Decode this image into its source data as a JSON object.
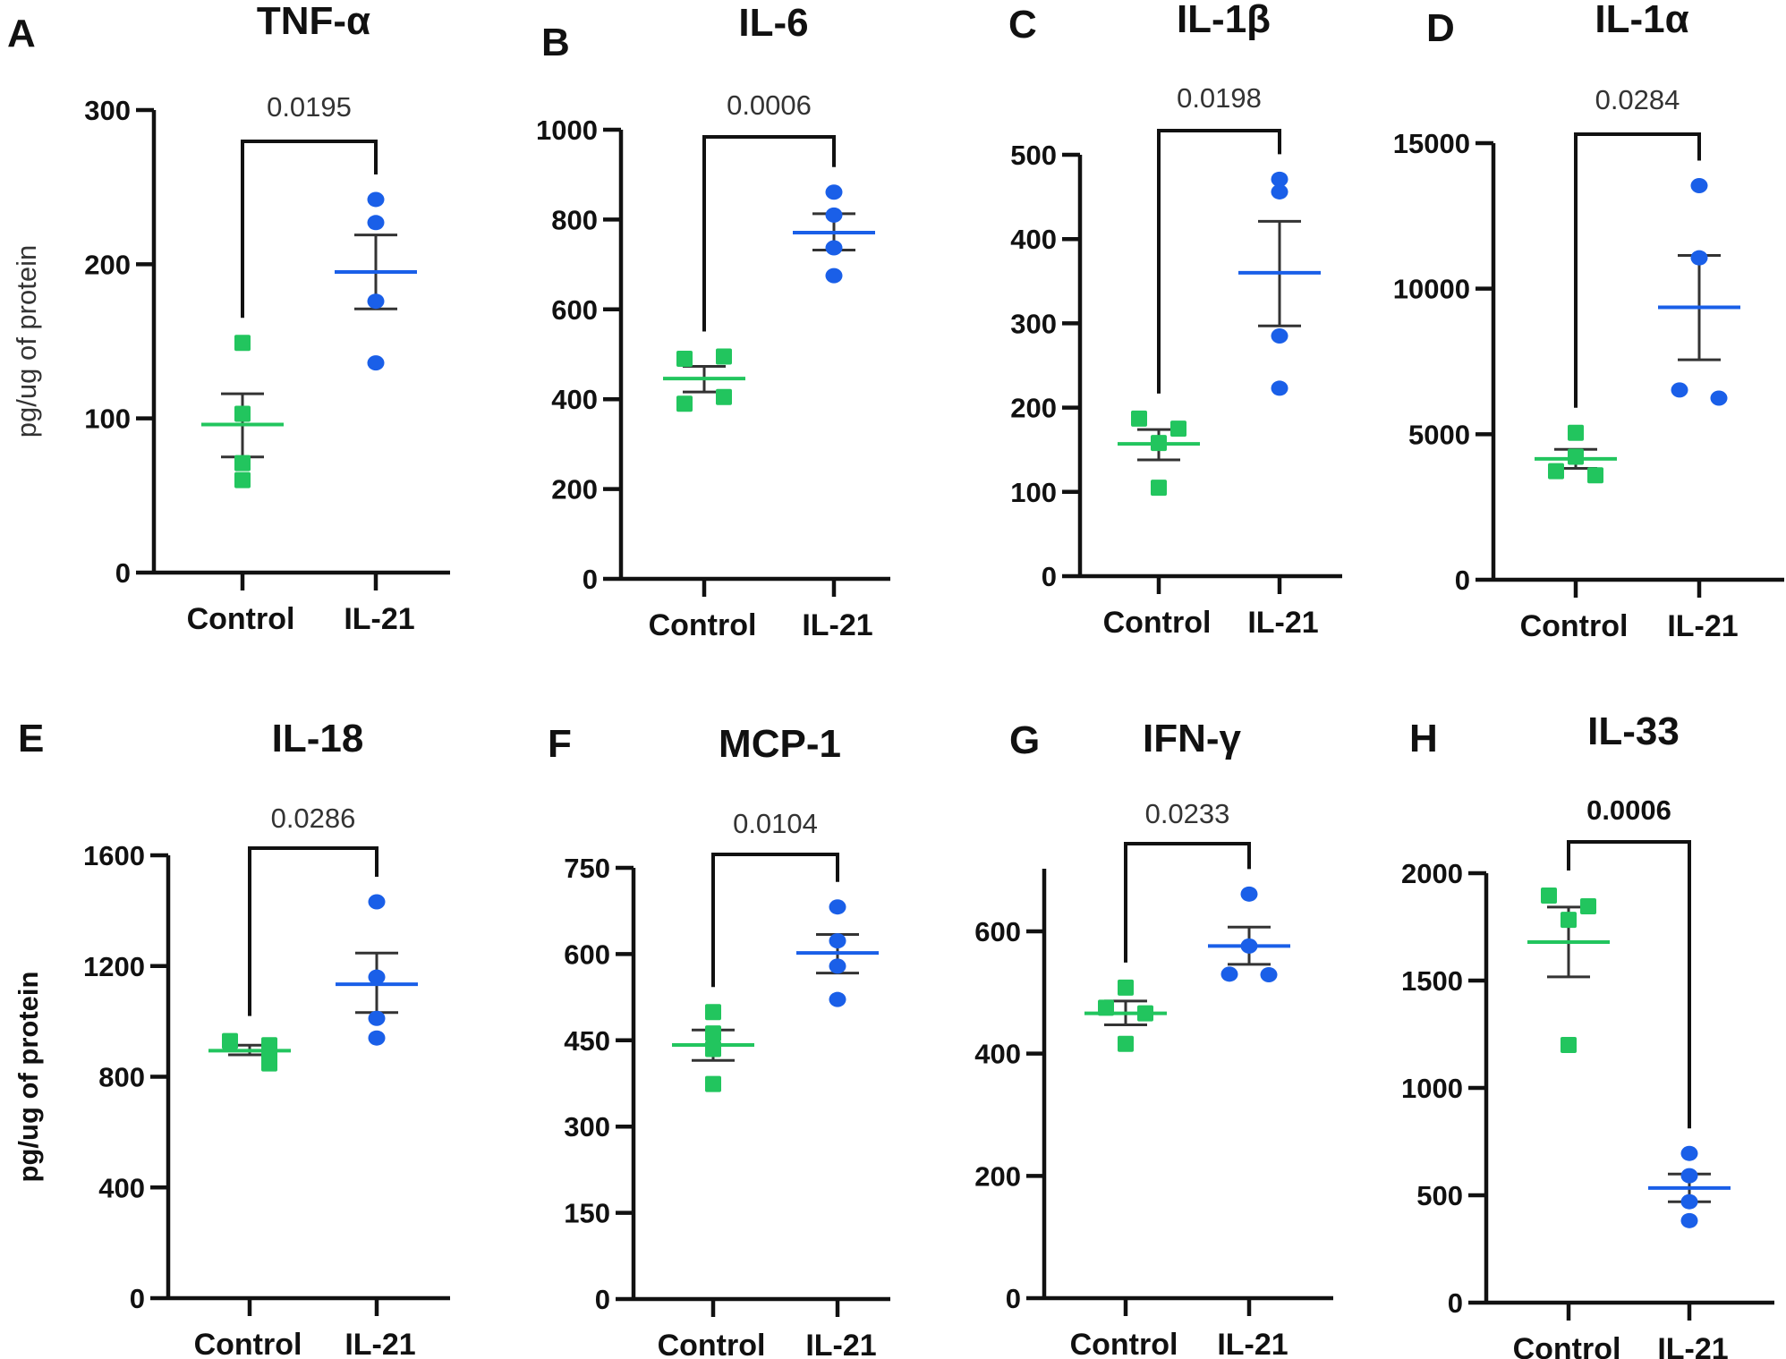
{
  "figure": {
    "shared": {
      "categories": [
        "Control",
        "IL-21"
      ],
      "ylabel": "pg/ug of protein",
      "colors": {
        "Control": "#22c55e",
        "IL-21": "#1a5fe8",
        "axis": "#111111",
        "error_bar": "#333333"
      },
      "markers": {
        "Control": "square",
        "IL-21": "circle"
      },
      "summary": "mean ± SEM"
    }
  },
  "chart_data": [
    {
      "panel": "A",
      "type": "scatter",
      "title": "TNF-α",
      "ylabel": "pg/ug of protein",
      "ylabel_bold": false,
      "ylim": [
        0,
        300
      ],
      "yticks": [
        0,
        100,
        200,
        300
      ],
      "categories": [
        "Control",
        "IL-21"
      ],
      "p_value": "0.0195",
      "p_bold": false,
      "series": [
        {
          "name": "Control",
          "values": [
            149,
            103,
            71,
            60
          ],
          "mean": 96,
          "sem_upper": 116,
          "sem_lower": 75
        },
        {
          "name": "IL-21",
          "values": [
            242,
            227,
            176,
            136
          ],
          "mean": 195,
          "sem_upper": 219,
          "sem_lower": 171
        }
      ]
    },
    {
      "panel": "B",
      "type": "scatter",
      "title": "IL-6",
      "ylabel": "",
      "ylabel_bold": false,
      "ylim": [
        0,
        1000
      ],
      "yticks": [
        0,
        200,
        400,
        600,
        800,
        1000
      ],
      "categories": [
        "Control",
        "IL-21"
      ],
      "p_value": "0.0006",
      "p_bold": false,
      "series": [
        {
          "name": "Control",
          "values": [
            490,
            495,
            390,
            405
          ],
          "mean": 446,
          "sem_upper": 473,
          "sem_lower": 416
        },
        {
          "name": "IL-21",
          "values": [
            861,
            810,
            737,
            675
          ],
          "mean": 771,
          "sem_upper": 813,
          "sem_lower": 732
        }
      ]
    },
    {
      "panel": "C",
      "type": "scatter",
      "title": "IL-1β",
      "ylabel": "",
      "ylabel_bold": false,
      "ylim": [
        0,
        500
      ],
      "yticks": [
        0,
        100,
        200,
        300,
        400,
        500
      ],
      "categories": [
        "Control",
        "IL-21"
      ],
      "p_value": "0.0198",
      "p_bold": false,
      "series": [
        {
          "name": "Control",
          "values": [
            187,
            175,
            158,
            105
          ],
          "mean": 157,
          "sem_upper": 174,
          "sem_lower": 138
        },
        {
          "name": "IL-21",
          "values": [
            471,
            456,
            285,
            223
          ],
          "mean": 360,
          "sem_upper": 421,
          "sem_lower": 297
        }
      ]
    },
    {
      "panel": "D",
      "type": "scatter",
      "title": "IL-1α",
      "ylabel": "",
      "ylabel_bold": false,
      "ylim": [
        0,
        15000
      ],
      "yticks": [
        0,
        5000,
        10000,
        15000
      ],
      "categories": [
        "Control",
        "IL-21"
      ],
      "p_value": "0.0284",
      "p_bold": false,
      "series": [
        {
          "name": "Control",
          "values": [
            5050,
            4225,
            3730,
            3590
          ],
          "mean": 4154,
          "sem_upper": 4480,
          "sem_lower": 3828
        },
        {
          "name": "IL-21",
          "values": [
            13540,
            11060,
            6520,
            6240
          ],
          "mean": 9358,
          "sem_upper": 11144,
          "sem_lower": 7557
        }
      ]
    },
    {
      "panel": "E",
      "type": "scatter",
      "title": "IL-18",
      "ylabel": "pg/ug of protein",
      "ylabel_bold": true,
      "ylim": [
        0,
        1600
      ],
      "yticks": [
        0,
        400,
        800,
        1200,
        1600
      ],
      "categories": [
        "Control",
        "IL-21"
      ],
      "p_value": "0.0286",
      "p_bold": false,
      "series": [
        {
          "name": "Control",
          "values": [
            929,
            914,
            886,
            848
          ],
          "mean": 894,
          "sem_upper": 914,
          "sem_lower": 879
        },
        {
          "name": "IL-21",
          "values": [
            1432,
            1160,
            1011,
            940
          ],
          "mean": 1134,
          "sem_upper": 1247,
          "sem_lower": 1032
        }
      ]
    },
    {
      "panel": "F",
      "type": "scatter",
      "title": "MCP-1",
      "ylabel": "",
      "ylabel_bold": false,
      "ylim": [
        0,
        750
      ],
      "yticks": [
        0,
        150,
        300,
        450,
        600,
        750
      ],
      "categories": [
        "Control",
        "IL-21"
      ],
      "p_value": "0.0104",
      "p_bold": false,
      "series": [
        {
          "name": "Control",
          "values": [
            499,
            462,
            435,
            374
          ],
          "mean": 442,
          "sem_upper": 468,
          "sem_lower": 415
        },
        {
          "name": "IL-21",
          "values": [
            682,
            623,
            579,
            521
          ],
          "mean": 602,
          "sem_upper": 634,
          "sem_lower": 567
        }
      ]
    },
    {
      "panel": "G",
      "type": "scatter",
      "title": "IFN-γ",
      "ylabel": "",
      "ylabel_bold": false,
      "ylim": [
        0,
        700
      ],
      "yticks": [
        0,
        200,
        400,
        600
      ],
      "categories": [
        "Control",
        "IL-21"
      ],
      "p_value": "0.0233",
      "p_bold": false,
      "series": [
        {
          "name": "Control",
          "values": [
            508,
            475,
            466,
            416
          ],
          "mean": 466,
          "sem_upper": 486,
          "sem_lower": 447
        },
        {
          "name": "IL-21",
          "values": [
            661,
            576,
            530,
            529
          ],
          "mean": 576,
          "sem_upper": 607,
          "sem_lower": 546
        }
      ]
    },
    {
      "panel": "H",
      "type": "scatter",
      "title": "IL-33",
      "ylabel": "",
      "ylabel_bold": false,
      "ylim": [
        0,
        2000
      ],
      "yticks": [
        0,
        500,
        1000,
        1500,
        2000
      ],
      "categories": [
        "Control",
        "IL-21"
      ],
      "p_value": "0.0006",
      "p_bold": true,
      "series": [
        {
          "name": "Control",
          "values": [
            1896,
            1846,
            1783,
            1200
          ],
          "mean": 1679,
          "sem_upper": 1842,
          "sem_lower": 1517
        },
        {
          "name": "IL-21",
          "values": [
            695,
            591,
            470,
            382
          ],
          "mean": 534,
          "sem_upper": 599,
          "sem_lower": 470
        }
      ]
    }
  ]
}
